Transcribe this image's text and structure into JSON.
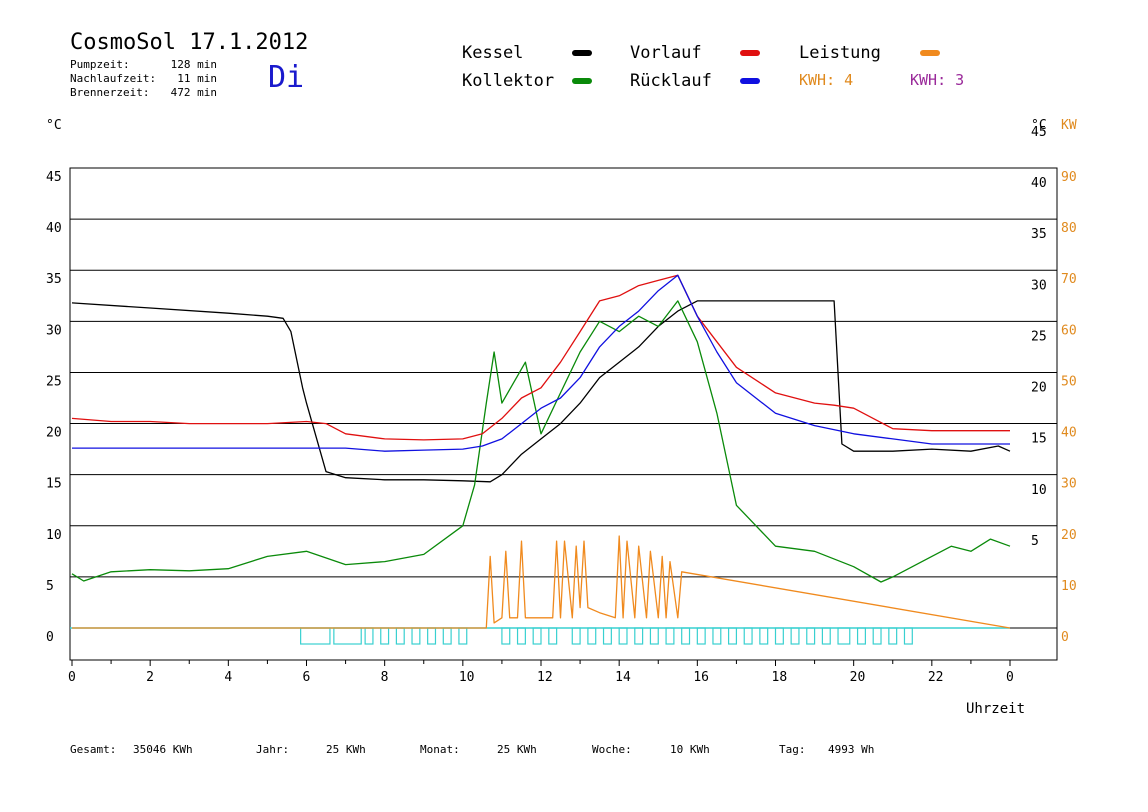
{
  "header": {
    "title": "CosmoSol 17.1.2012",
    "weekday": "Di",
    "stats": [
      {
        "label": "Pumpzeit:",
        "value": "128 min"
      },
      {
        "label": "Nachlaufzeit:",
        "value": "11 min"
      },
      {
        "label": "Brennerzeit:",
        "value": "472 min"
      }
    ]
  },
  "legend": {
    "items": [
      {
        "label": "Kessel",
        "color": "#000000"
      },
      {
        "label": "Kollektor",
        "color": "#0a8a0a"
      },
      {
        "label": "Vorlauf",
        "color": "#e01010"
      },
      {
        "label": "Rücklauf",
        "color": "#1010e0"
      },
      {
        "label": "Leistung",
        "color": "#f08a1e"
      }
    ],
    "kwh_a": {
      "text": "KWH: 4",
      "color": "#e08a1e"
    },
    "kwh_b": {
      "text": "KWH: 3",
      "color": "#9a2a9a"
    }
  },
  "axes": {
    "left_unit": "°C",
    "right_unit": "°C",
    "kw_unit": "KW",
    "x_unit": "Uhrzeit"
  },
  "footer": [
    {
      "label": "Gesamt:",
      "value": "35046 KWh"
    },
    {
      "label": "Jahr:",
      "value": "25 KWh"
    },
    {
      "label": "Monat:",
      "value": "25 KWh"
    },
    {
      "label": "Woche:",
      "value": "10 KWh"
    },
    {
      "label": "Tag:",
      "value": "4993 Wh"
    }
  ],
  "chart_data": {
    "type": "line",
    "xlim": [
      0,
      24
    ],
    "ylim": [
      0,
      45
    ],
    "y2lim": [
      0,
      90
    ],
    "x_ticks": [
      "0",
      "2",
      "4",
      "6",
      "8",
      "10",
      "12",
      "14",
      "16",
      "18",
      "20",
      "22",
      "0"
    ],
    "y_ticks_left": [
      "0",
      "5",
      "10",
      "15",
      "20",
      "25",
      "30",
      "35",
      "40",
      "45"
    ],
    "y_ticks_right": [
      "5",
      "10",
      "15",
      "20",
      "25",
      "30",
      "35",
      "40",
      "45"
    ],
    "y2_ticks": [
      "0",
      "10",
      "20",
      "30",
      "40",
      "50",
      "60",
      "70",
      "80",
      "90"
    ],
    "grid": true,
    "series": [
      {
        "name": "Kessel",
        "color": "#000000",
        "x": [
          0,
          2,
          4,
          5,
          5.4,
          5.6,
          5.9,
          6,
          6.5,
          7,
          8,
          9,
          10,
          10.7,
          11,
          11.5,
          12,
          12.5,
          13,
          13.5,
          14,
          14.5,
          15,
          15.5,
          16,
          17,
          18,
          19,
          19.5,
          19.7,
          20,
          21,
          22,
          23,
          23.7,
          24
        ],
        "y": [
          31.8,
          31.3,
          30.8,
          30.5,
          30.3,
          29,
          23.5,
          22,
          15.3,
          14.7,
          14.5,
          14.5,
          14.4,
          14.3,
          15,
          17,
          18.5,
          20,
          22,
          24.5,
          26,
          27.5,
          29.5,
          31,
          32,
          32,
          32,
          32,
          32,
          18,
          17.3,
          17.3,
          17.5,
          17.3,
          17.8,
          17.3
        ]
      },
      {
        "name": "Kollektor",
        "color": "#0a8a0a",
        "x": [
          0,
          0.3,
          1,
          2,
          3,
          4,
          5,
          6,
          7,
          8,
          9,
          10,
          10.3,
          10.6,
          10.8,
          11,
          11.3,
          11.6,
          12,
          12.5,
          13,
          13.5,
          14,
          14.5,
          15,
          15.5,
          16,
          16.5,
          17,
          17.5,
          18,
          19,
          20,
          20.7,
          21,
          21.5,
          22,
          22.5,
          23,
          23.5,
          24
        ],
        "y": [
          5.3,
          4.6,
          5.5,
          5.7,
          5.6,
          5.8,
          7,
          7.5,
          6.2,
          6.5,
          7.2,
          10,
          14,
          22,
          27,
          22,
          24,
          26,
          19,
          23,
          27,
          30,
          29,
          30.5,
          29.5,
          32,
          28,
          21,
          12,
          10,
          8,
          7.5,
          6,
          4.5,
          5,
          6,
          7,
          8,
          7.5,
          8.7,
          8
        ]
      },
      {
        "name": "Vorlauf",
        "color": "#e01010",
        "x": [
          0,
          1,
          2,
          3,
          4,
          5,
          6,
          6.5,
          7,
          8,
          9,
          10,
          10.5,
          11,
          11.5,
          12,
          12.5,
          13,
          13.5,
          14,
          14.5,
          15,
          15.5,
          16,
          16.5,
          17,
          18,
          19,
          19.5,
          20,
          20.5,
          21,
          22,
          23,
          24
        ],
        "y": [
          20.5,
          20.2,
          20.2,
          20,
          20,
          20,
          20.2,
          20,
          19,
          18.5,
          18.4,
          18.5,
          19,
          20.5,
          22.5,
          23.5,
          26,
          29,
          32,
          32.5,
          33.5,
          34,
          34.5,
          30.5,
          28,
          25.5,
          23,
          22,
          21.8,
          21.5,
          20.5,
          19.5,
          19.3,
          19.3,
          19.3
        ]
      },
      {
        "name": "Rücklauf",
        "color": "#1010e0",
        "x": [
          0,
          2,
          4,
          6,
          7,
          8,
          9,
          10,
          10.5,
          11,
          11.5,
          12,
          12.5,
          13,
          13.5,
          14,
          14.5,
          15,
          15.5,
          16,
          16.5,
          17,
          18,
          19,
          20,
          21,
          22,
          23,
          24
        ],
        "y": [
          17.6,
          17.6,
          17.6,
          17.6,
          17.6,
          17.3,
          17.4,
          17.5,
          17.8,
          18.5,
          20,
          21.5,
          22.5,
          24.5,
          27.5,
          29.5,
          31,
          33,
          34.5,
          30.5,
          27,
          24,
          21,
          19.8,
          19,
          18.5,
          18,
          18,
          18
        ]
      },
      {
        "name": "Leistung",
        "color": "#f08a1e",
        "x": [
          0,
          10.6,
          10.7,
          10.8,
          11,
          11.1,
          11.2,
          11.4,
          11.5,
          11.6,
          12,
          12.3,
          12.4,
          12.5,
          12.6,
          12.8,
          12.9,
          13,
          13.1,
          13.2,
          13.5,
          13.9,
          14,
          14.1,
          14.2,
          14.4,
          14.5,
          14.7,
          14.8,
          15,
          15.1,
          15.2,
          15.3,
          15.5,
          15.6,
          24
        ],
        "y": [
          0,
          0,
          7,
          0.5,
          1,
          7.5,
          1,
          1,
          8.5,
          1,
          1,
          1,
          8.5,
          1,
          8.5,
          1,
          8,
          2,
          8.5,
          2,
          1.5,
          1,
          9,
          1,
          8.5,
          1,
          8,
          1,
          7.5,
          1,
          7,
          1,
          6.5,
          1,
          5.5,
          0
        ]
      }
    ],
    "hatch_blocks": {
      "color": "#38d0d0"
    }
  }
}
